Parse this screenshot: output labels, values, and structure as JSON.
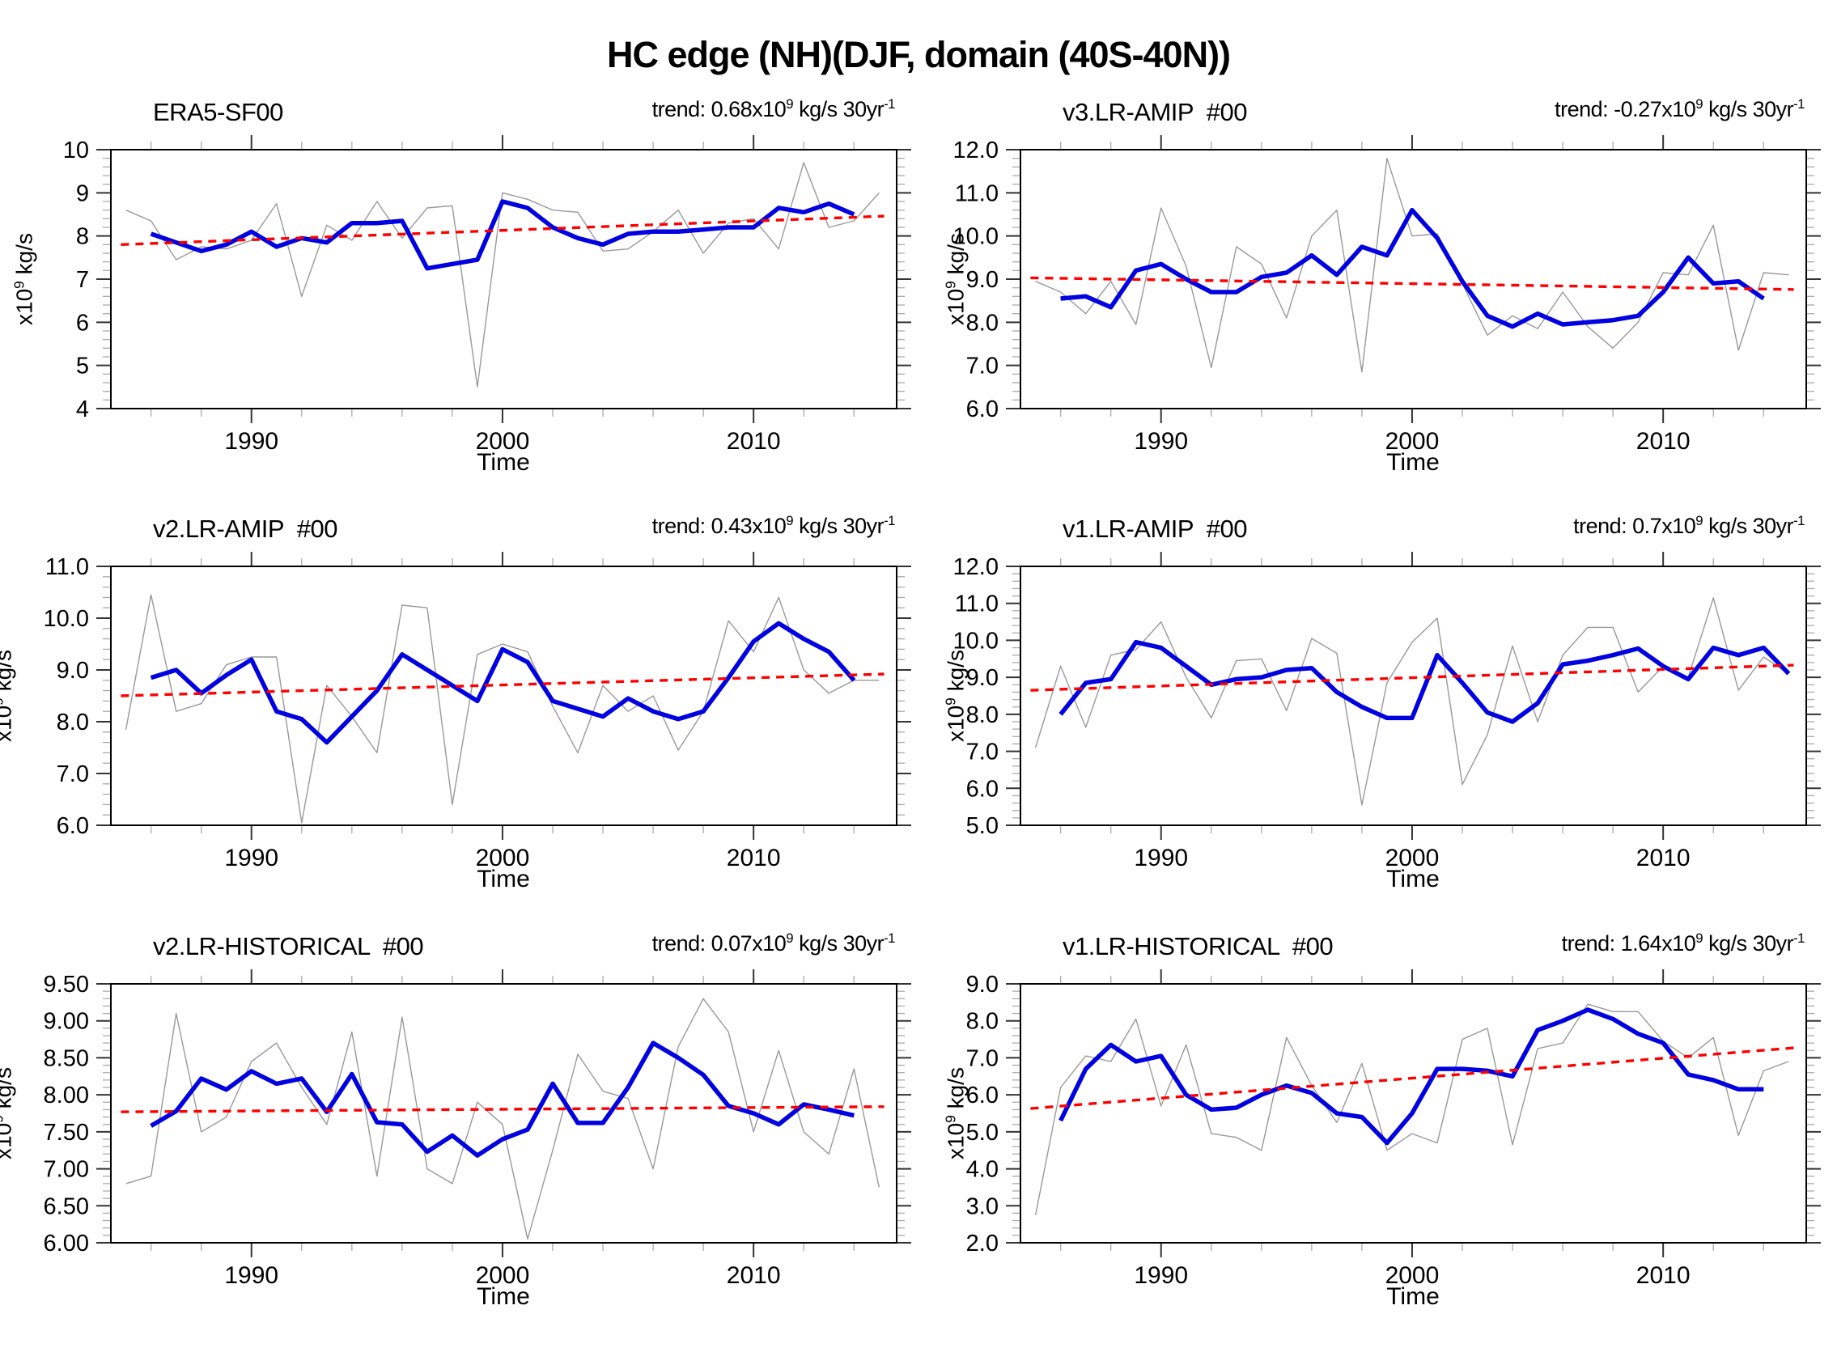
{
  "page_title": "HC edge (NH)(DJF, domain (40S-40N))",
  "colors": {
    "annual": "#999999",
    "smoothed": "#0000e0",
    "trend": "#ff0000",
    "frame": "#000000",
    "major_tick": "#333333",
    "minor_tick": "#aaaaaa",
    "text": "#000000"
  },
  "chart_data": [
    {
      "type": "line",
      "title": "ERA5-SF00",
      "trend_label": "trend: 0.68x10^{9} kg/s 30yr^{-1}",
      "xlabel": "Time",
      "ylabel": "x10^{9} kg/s",
      "xlim": [
        1984.4,
        2015.7
      ],
      "xticks_major": [
        1990,
        2000,
        2010
      ],
      "xminor_step": 2,
      "ylim": [
        4,
        10
      ],
      "ytick_step": 1,
      "ytick_decimals": 0,
      "yminor_step": 0.2,
      "legend": "none",
      "grid": "off",
      "series": [
        {
          "name": "annual",
          "color_key": "annual",
          "x_start": 1985,
          "values": [
            8.6,
            8.35,
            7.45,
            7.75,
            7.7,
            7.9,
            8.75,
            6.6,
            8.25,
            7.9,
            8.8,
            7.95,
            8.65,
            8.7,
            4.5,
            9.0,
            8.85,
            8.6,
            8.55,
            7.65,
            7.7,
            8.1,
            8.6,
            7.6,
            8.3,
            8.4,
            7.7,
            9.7,
            8.2,
            8.35,
            9.0
          ]
        },
        {
          "name": "smoothed",
          "color_key": "smoothed",
          "x_start": 1986,
          "values": [
            8.05,
            7.85,
            7.65,
            7.8,
            8.1,
            7.75,
            7.95,
            7.85,
            8.3,
            8.3,
            8.35,
            7.25,
            7.35,
            7.45,
            8.8,
            8.65,
            8.2,
            7.95,
            7.8,
            8.05,
            8.1,
            8.1,
            8.15,
            8.2,
            8.2,
            8.65,
            8.55,
            8.75,
            8.5
          ]
        }
      ],
      "trend_line": {
        "x": [
          1984.8,
          2015.2
        ],
        "y": [
          7.8,
          8.46
        ]
      }
    },
    {
      "type": "line",
      "title": "v3.LR-AMIP  #00",
      "trend_label": "trend: -0.27x10^{9} kg/s 30yr^{-1}",
      "xlabel": "Time",
      "ylabel": "x10^{9} kg/s",
      "xlim": [
        1984.4,
        2015.7
      ],
      "xticks_major": [
        1990,
        2000,
        2010
      ],
      "xminor_step": 2,
      "ylim": [
        6,
        12
      ],
      "ytick_step": 1,
      "ytick_decimals": 1,
      "yminor_step": 0.2,
      "legend": "none",
      "grid": "off",
      "series": [
        {
          "name": "annual",
          "color_key": "annual",
          "x_start": 1985,
          "values": [
            8.95,
            8.7,
            8.2,
            8.95,
            7.95,
            10.65,
            9.3,
            6.95,
            9.75,
            9.35,
            8.1,
            10.0,
            10.6,
            6.85,
            11.8,
            10.0,
            10.05,
            8.9,
            7.7,
            8.15,
            7.85,
            8.7,
            7.9,
            7.4,
            8.0,
            9.15,
            9.1,
            10.25,
            7.35,
            9.15,
            9.1
          ]
        },
        {
          "name": "smoothed",
          "color_key": "smoothed",
          "x_start": 1986,
          "values": [
            8.55,
            8.6,
            8.35,
            9.2,
            9.35,
            9.0,
            8.7,
            8.7,
            9.05,
            9.15,
            9.55,
            9.1,
            9.75,
            9.55,
            10.6,
            9.95,
            8.95,
            8.15,
            7.9,
            8.2,
            7.95,
            8.0,
            8.05,
            8.15,
            8.7,
            9.5,
            8.9,
            8.95,
            8.55
          ]
        }
      ],
      "trend_line": {
        "x": [
          1984.8,
          2015.2
        ],
        "y": [
          9.03,
          8.76
        ]
      }
    },
    {
      "type": "line",
      "title": "v2.LR-AMIP  #00",
      "trend_label": "trend: 0.43x10^{9} kg/s 30yr^{-1}",
      "xlabel": "Time",
      "ylabel": "x10^{9} kg/s",
      "xlim": [
        1984.4,
        2015.7
      ],
      "xticks_major": [
        1990,
        2000,
        2010
      ],
      "xminor_step": 2,
      "ylim": [
        6,
        11
      ],
      "ytick_step": 1,
      "ytick_decimals": 1,
      "yminor_step": 0.2,
      "legend": "none",
      "grid": "off",
      "series": [
        {
          "name": "annual",
          "color_key": "annual",
          "x_start": 1985,
          "values": [
            7.85,
            10.45,
            8.2,
            8.35,
            9.1,
            9.25,
            9.25,
            6.05,
            8.7,
            8.1,
            7.4,
            10.25,
            10.2,
            6.4,
            9.3,
            9.5,
            9.35,
            8.3,
            7.4,
            8.7,
            8.2,
            8.5,
            7.45,
            8.2,
            9.95,
            9.35,
            10.4,
            9.0,
            8.55,
            8.8,
            8.8
          ]
        },
        {
          "name": "smoothed",
          "color_key": "smoothed",
          "x_start": 1986,
          "values": [
            8.85,
            9.0,
            8.55,
            8.9,
            9.2,
            8.2,
            8.05,
            7.6,
            8.1,
            8.6,
            9.3,
            9.0,
            8.7,
            8.4,
            9.4,
            9.15,
            8.4,
            8.25,
            8.1,
            8.45,
            8.2,
            8.05,
            8.2,
            8.85,
            9.55,
            9.9,
            9.6,
            9.35,
            8.8
          ]
        }
      ],
      "trend_line": {
        "x": [
          1984.8,
          2015.2
        ],
        "y": [
          8.5,
          8.92
        ]
      }
    },
    {
      "type": "line",
      "title": "v1.LR-AMIP  #00",
      "trend_label": "trend: 0.7x10^{9} kg/s 30yr^{-1}",
      "xlabel": "Time",
      "ylabel": "x10^{9} kg/s",
      "xlim": [
        1984.4,
        2015.7
      ],
      "xticks_major": [
        1990,
        2000,
        2010
      ],
      "xminor_step": 2,
      "ylim": [
        5,
        12
      ],
      "ytick_step": 1,
      "ytick_decimals": 1,
      "yminor_step": 0.2,
      "legend": "none",
      "grid": "off",
      "series": [
        {
          "name": "annual",
          "color_key": "annual",
          "x_start": 1985,
          "values": [
            7.1,
            9.3,
            7.65,
            9.6,
            9.75,
            10.5,
            9.0,
            7.9,
            9.45,
            9.5,
            8.1,
            10.05,
            9.65,
            5.55,
            8.85,
            9.95,
            10.6,
            6.1,
            7.45,
            9.85,
            7.8,
            9.6,
            10.35,
            10.35,
            8.6,
            9.3,
            9.0,
            11.15,
            8.65,
            9.55,
            9.1
          ]
        },
        {
          "name": "smoothed",
          "color_key": "smoothed",
          "x_start": 1986,
          "values": [
            8.0,
            8.85,
            8.95,
            9.95,
            9.8,
            9.3,
            8.8,
            8.95,
            9.0,
            9.2,
            9.25,
            8.6,
            8.2,
            7.9,
            7.9,
            9.6,
            8.85,
            8.05,
            7.8,
            8.3,
            9.35,
            9.45,
            9.6,
            9.78,
            9.3,
            8.95,
            9.8,
            9.6,
            9.8,
            9.1
          ]
        }
      ],
      "trend_line": {
        "x": [
          1984.8,
          2015.2
        ],
        "y": [
          8.65,
          9.33
        ]
      }
    },
    {
      "type": "line",
      "title": "v2.LR-HISTORICAL  #00",
      "trend_label": "trend: 0.07x10^{9} kg/s 30yr^{-1}",
      "xlabel": "Time",
      "ylabel": "x10^{9} kg/s",
      "xlim": [
        1984.4,
        2015.7
      ],
      "xticks_major": [
        1990,
        2000,
        2010
      ],
      "xminor_step": 2,
      "ylim": [
        6,
        9.5
      ],
      "ytick_step": 0.5,
      "ytick_decimals": 2,
      "yminor_step": 0.1,
      "legend": "none",
      "grid": "off",
      "series": [
        {
          "name": "annual",
          "color_key": "annual",
          "x_start": 1985,
          "values": [
            6.8,
            6.9,
            9.1,
            7.5,
            7.7,
            8.45,
            8.7,
            8.1,
            7.6,
            8.85,
            6.9,
            9.05,
            7.0,
            6.8,
            7.9,
            7.6,
            6.05,
            7.25,
            8.55,
            8.05,
            7.95,
            7.0,
            8.65,
            9.3,
            8.85,
            7.5,
            8.6,
            7.5,
            7.2,
            8.35,
            6.75
          ]
        },
        {
          "name": "smoothed",
          "color_key": "smoothed",
          "x_start": 1986,
          "values": [
            7.58,
            7.78,
            8.22,
            8.07,
            8.32,
            8.15,
            8.22,
            7.77,
            8.28,
            7.63,
            7.6,
            7.23,
            7.45,
            7.18,
            7.4,
            7.53,
            8.15,
            7.62,
            7.62,
            8.1,
            8.7,
            8.5,
            8.27,
            7.85,
            7.75,
            7.6,
            7.87,
            7.8,
            7.72
          ]
        }
      ],
      "trend_line": {
        "x": [
          1984.8,
          2015.2
        ],
        "y": [
          7.77,
          7.84
        ]
      }
    },
    {
      "type": "line",
      "title": "v1.LR-HISTORICAL  #00",
      "trend_label": "trend: 1.64x10^{9} kg/s 30yr^{-1}",
      "xlabel": "Time",
      "ylabel": "x10^{9} kg/s",
      "xlim": [
        1984.4,
        2015.7
      ],
      "xticks_major": [
        1990,
        2000,
        2010
      ],
      "xminor_step": 2,
      "ylim": [
        2,
        9
      ],
      "ytick_step": 1,
      "ytick_decimals": 1,
      "yminor_step": 0.2,
      "legend": "none",
      "grid": "off",
      "series": [
        {
          "name": "annual",
          "color_key": "annual",
          "x_start": 1985,
          "values": [
            2.75,
            6.2,
            7.05,
            6.9,
            8.05,
            5.7,
            7.35,
            4.95,
            4.85,
            4.5,
            7.55,
            6.25,
            5.25,
            6.85,
            4.5,
            4.95,
            4.7,
            7.5,
            7.8,
            4.65,
            7.25,
            7.4,
            8.45,
            8.25,
            8.25,
            7.45,
            7.0,
            7.55,
            4.9,
            6.65,
            6.9
          ]
        },
        {
          "name": "smoothed",
          "color_key": "smoothed",
          "x_start": 1986,
          "values": [
            5.3,
            6.7,
            7.35,
            6.9,
            7.05,
            6.0,
            5.6,
            5.65,
            6.0,
            6.25,
            6.05,
            5.5,
            5.4,
            4.7,
            5.5,
            6.7,
            6.7,
            6.65,
            6.5,
            7.75,
            8.0,
            8.3,
            8.05,
            7.65,
            7.4,
            6.55,
            6.4,
            6.15,
            6.15
          ]
        }
      ],
      "trend_line": {
        "x": [
          1984.8,
          2015.2
        ],
        "y": [
          5.63,
          7.27
        ]
      }
    }
  ]
}
